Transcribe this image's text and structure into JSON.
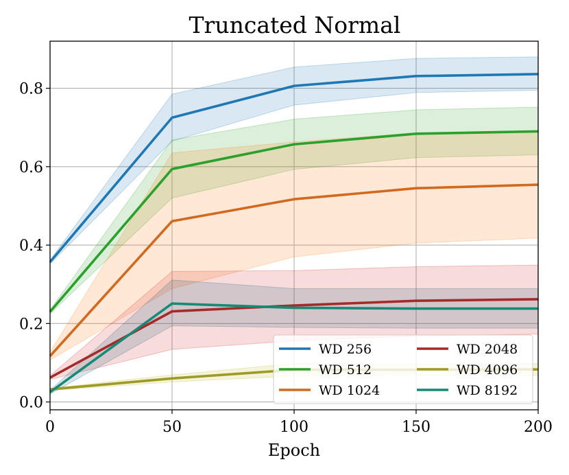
{
  "chart_data": {
    "type": "line",
    "title": "Truncated Normal",
    "xlabel": "Epoch",
    "ylabel": "",
    "xlim": [
      0,
      200
    ],
    "ylim": [
      -0.02,
      0.92
    ],
    "xticks": [
      0,
      50,
      100,
      150,
      200
    ],
    "yticks": [
      0.0,
      0.2,
      0.4,
      0.6,
      0.8
    ],
    "xtick_labels": [
      "0",
      "50",
      "100",
      "150",
      "200"
    ],
    "ytick_labels": [
      "0.0",
      "0.2",
      "0.4",
      "0.6",
      "0.8"
    ],
    "grid": true,
    "legend": {
      "placement": "lower-right",
      "columns": 2
    },
    "x": [
      0,
      50,
      100,
      150,
      200
    ],
    "series": [
      {
        "name": "WD 256",
        "color": "#1f77b4",
        "values": [
          0.357,
          0.725,
          0.806,
          0.831,
          0.836
        ],
        "lower": [
          0.352,
          0.665,
          0.757,
          0.789,
          0.795
        ],
        "upper": [
          0.362,
          0.785,
          0.854,
          0.876,
          0.88
        ]
      },
      {
        "name": "WD 512",
        "color": "#2ca02c",
        "values": [
          0.23,
          0.594,
          0.657,
          0.684,
          0.69
        ],
        "lower": [
          0.225,
          0.52,
          0.593,
          0.623,
          0.63
        ],
        "upper": [
          0.235,
          0.668,
          0.721,
          0.745,
          0.752
        ]
      },
      {
        "name": "WD 1024",
        "color": "#d2691e",
        "values": [
          0.117,
          0.461,
          0.517,
          0.545,
          0.554
        ],
        "lower": [
          0.107,
          0.289,
          0.37,
          0.405,
          0.418
        ],
        "upper": [
          0.127,
          0.635,
          0.663,
          0.686,
          0.69
        ]
      },
      {
        "name": "WD 2048",
        "color": "#a52a2a",
        "values": [
          0.062,
          0.231,
          0.246,
          0.258,
          0.262
        ],
        "lower": [
          0.057,
          0.134,
          0.156,
          0.168,
          0.173
        ],
        "upper": [
          0.067,
          0.333,
          0.335,
          0.345,
          0.349
        ]
      },
      {
        "name": "WD 4096",
        "color": "#9e9a26",
        "values": [
          0.032,
          0.06,
          0.082,
          0.082,
          0.083
        ],
        "lower": [
          0.029,
          0.051,
          0.066,
          0.068,
          0.068
        ],
        "upper": [
          0.035,
          0.069,
          0.098,
          0.096,
          0.098
        ]
      },
      {
        "name": "WD 8192",
        "color": "#168a74",
        "values": [
          0.025,
          0.251,
          0.24,
          0.238,
          0.238
        ],
        "lower": [
          0.02,
          0.194,
          0.19,
          0.188,
          0.188
        ],
        "upper": [
          0.03,
          0.311,
          0.289,
          0.289,
          0.289
        ]
      }
    ],
    "band_colors": {
      "WD 256": "#1f77b4",
      "WD 512": "#2ca02c",
      "WD 1024": "#ff7f0e",
      "WD 2048": "#d62728",
      "WD 4096": "#bcbd22",
      "WD 8192": "#17607a"
    },
    "legend_order": [
      "WD 256",
      "WD 512",
      "WD 1024",
      "WD 2048",
      "WD 4096",
      "WD 8192"
    ]
  }
}
